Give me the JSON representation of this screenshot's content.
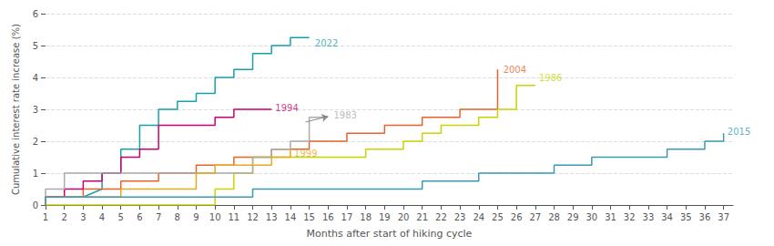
{
  "chart_data": {
    "type": "line",
    "xlabel": "Months after start of hiking cycle",
    "ylabel": "Cumulative interest rate increase (%)",
    "xlim": [
      1,
      37.5
    ],
    "xticks": [
      1,
      2,
      3,
      4,
      5,
      6,
      7,
      8,
      9,
      10,
      11,
      12,
      13,
      14,
      15,
      16,
      17,
      18,
      19,
      20,
      21,
      22,
      23,
      24,
      25,
      26,
      27,
      28,
      29,
      30,
      31,
      32,
      33,
      34,
      35,
      36,
      37
    ],
    "ylim": [
      0,
      6
    ],
    "yticks": [
      0,
      1,
      2,
      3,
      4,
      5,
      6
    ],
    "grid": "y",
    "series": [
      {
        "color": "#1a9faa",
        "x": [
          1,
          1,
          2,
          3,
          4,
          4,
          5,
          5,
          6,
          6,
          7,
          7,
          8,
          8,
          9,
          9,
          10,
          10,
          11,
          11,
          12,
          12,
          13,
          13,
          14,
          14,
          15
        ],
        "values": [
          0.0,
          0.25,
          0.25,
          0.25,
          0.5,
          1.0,
          1.0,
          1.75,
          1.75,
          2.5,
          2.5,
          3.0,
          3.0,
          3.25,
          3.25,
          3.5,
          3.5,
          4.0,
          4.0,
          4.25,
          4.25,
          4.75,
          4.75,
          5.0,
          5.0,
          5.25,
          5.25
        ]
      },
      {
        "color": "#e8632a",
        "x": [
          1,
          1,
          3,
          3,
          5,
          5,
          7,
          7,
          9,
          9,
          11,
          11,
          13,
          13,
          15,
          15,
          17,
          17,
          19,
          19,
          21,
          21,
          23,
          23,
          25,
          25,
          25,
          25,
          25
        ],
        "values": [
          0.0,
          0.25,
          0.25,
          0.5,
          0.5,
          0.75,
          0.75,
          1.0,
          1.0,
          1.25,
          1.25,
          1.5,
          1.5,
          1.75,
          1.75,
          2.0,
          2.0,
          2.25,
          2.25,
          2.5,
          2.5,
          2.75,
          2.75,
          3.0,
          3.0,
          3.25,
          3.5,
          3.75,
          4.25
        ]
      },
      {
        "color": "#c8d400",
        "x": [
          1,
          10,
          10,
          11,
          11,
          12,
          12,
          18,
          18,
          20,
          20,
          21,
          21,
          22,
          22,
          24,
          24,
          25,
          25,
          26,
          26,
          27
        ],
        "values": [
          0.0,
          0.0,
          0.5,
          0.5,
          1.0,
          1.0,
          1.5,
          1.5,
          1.75,
          1.75,
          2.0,
          2.0,
          2.25,
          2.25,
          2.5,
          2.5,
          2.75,
          2.75,
          3.0,
          3.0,
          3.75,
          3.75
        ]
      },
      {
        "color": "#cc006e",
        "x": [
          1,
          1,
          2,
          2,
          3,
          3,
          4,
          4,
          5,
          5,
          6,
          6,
          7,
          7,
          10,
          10,
          11,
          11,
          13
        ],
        "values": [
          0.0,
          0.25,
          0.25,
          0.5,
          0.5,
          0.75,
          0.75,
          1.0,
          1.0,
          1.5,
          1.5,
          1.75,
          1.75,
          2.5,
          2.5,
          2.75,
          2.75,
          3.0,
          3.0
        ]
      },
      {
        "color": "#aaaaaa",
        "x": [
          1,
          1,
          2,
          2,
          12,
          12,
          13,
          13,
          14,
          14,
          15,
          15,
          16
        ],
        "values": [
          0.0,
          0.5,
          0.5,
          1.0,
          1.0,
          1.5,
          1.5,
          1.75,
          1.75,
          2.0,
          2.0,
          2.75,
          2.75
        ]
      },
      {
        "color": "#e8a820",
        "x": [
          1,
          1,
          5,
          5,
          9,
          9,
          10,
          10,
          13,
          13,
          14,
          14
        ],
        "values": [
          0.0,
          0.25,
          0.25,
          0.5,
          0.5,
          1.0,
          1.0,
          1.25,
          1.25,
          1.5,
          1.5,
          1.75
        ]
      },
      {
        "color": "#3a9ab5",
        "x": [
          1,
          1,
          12,
          12,
          21,
          21,
          24,
          24,
          28,
          28,
          30,
          30,
          34,
          34,
          36,
          36,
          37,
          37
        ],
        "values": [
          0.0,
          0.25,
          0.25,
          0.5,
          0.5,
          0.75,
          0.75,
          1.0,
          1.0,
          1.25,
          1.25,
          1.5,
          1.5,
          1.75,
          1.75,
          2.0,
          2.0,
          2.25
        ]
      }
    ],
    "annotations": [
      {
        "text": "2022",
        "x": 15.3,
        "y": 5.08,
        "color": "#1a9faa"
      },
      {
        "text": "2004",
        "x": 25.3,
        "y": 4.25,
        "color": "#e8632a"
      },
      {
        "text": "1986",
        "x": 27.2,
        "y": 4.0,
        "color": "#c8d400"
      },
      {
        "text": "1994",
        "x": 13.2,
        "y": 3.05,
        "color": "#cc006e"
      },
      {
        "text": "1983",
        "x": 16.3,
        "y": 2.82,
        "color": "#aaaaaa",
        "arrow_from": [
          14.8,
          2.6
        ],
        "arrow_to": [
          16.0,
          2.78
        ]
      },
      {
        "text": "1999",
        "x": 14.2,
        "y": 1.62,
        "color": "#e8a820"
      },
      {
        "text": "2015",
        "x": 37.2,
        "y": 2.3,
        "color": "#3a9ab5"
      }
    ]
  }
}
